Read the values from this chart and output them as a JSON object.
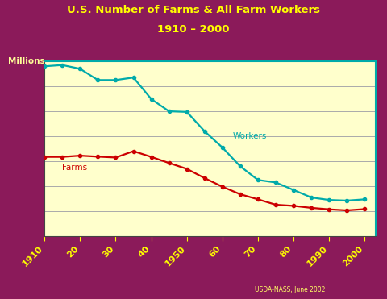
{
  "title_line1": "U.S. Number of Farms & All Farm Workers",
  "title_line2": "1910 – 2000",
  "ylabel": "Millions",
  "bg_outer": "#8B1A5A",
  "bg_inner": "#FFFFCC",
  "title_color": "#FFFF00",
  "grid_color": "#AAAAAA",
  "footnote": "USDA-NASS, June 2002",
  "footnote_color": "#FFFF66",
  "workers_color": "#00AAAA",
  "farms_color": "#CC0000",
  "workers_label": "Workers",
  "farms_label": "Farms",
  "label_color_workers": "#00AAAA",
  "label_color_farms": "#CC0000",
  "ytick_label_color": "#8B1A5A",
  "xtick_label_color": "#FFFF00",
  "millions_color": "#FFFF99",
  "years": [
    1910,
    1915,
    1920,
    1925,
    1930,
    1935,
    1940,
    1945,
    1950,
    1955,
    1960,
    1965,
    1970,
    1975,
    1980,
    1985,
    1990,
    1995,
    2000
  ],
  "workers": [
    13.6,
    13.7,
    13.4,
    12.5,
    12.5,
    12.7,
    10.98,
    10.0,
    9.95,
    8.4,
    7.1,
    5.6,
    4.5,
    4.3,
    3.7,
    3.1,
    2.9,
    2.85,
    2.95
  ],
  "farms": [
    6.35,
    6.35,
    6.45,
    6.37,
    6.3,
    6.81,
    6.35,
    5.86,
    5.39,
    4.65,
    3.96,
    3.36,
    2.95,
    2.52,
    2.43,
    2.27,
    2.15,
    2.07,
    2.17
  ],
  "xlim": [
    1910,
    2003
  ],
  "ylim": [
    0,
    14
  ],
  "yticks": [
    0,
    2,
    4,
    6,
    8,
    10,
    12,
    14
  ],
  "xtick_positions": [
    1910,
    1920,
    1930,
    1940,
    1950,
    1960,
    1970,
    1980,
    1990,
    2000
  ],
  "xtick_labels": [
    "1910",
    "20",
    "30",
    "40",
    "1950",
    "60",
    "70",
    "80",
    "1990",
    "2000"
  ]
}
